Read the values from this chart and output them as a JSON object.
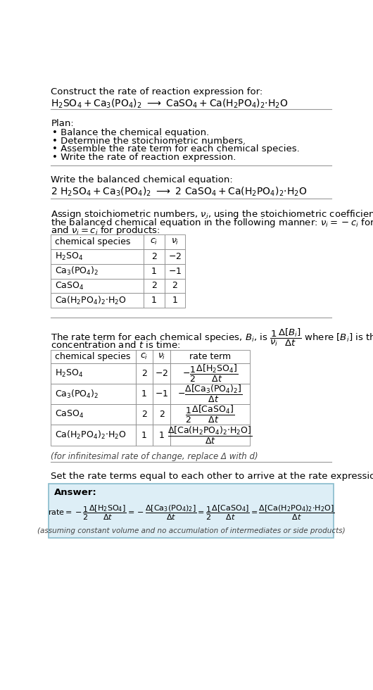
{
  "bg_color": "#ffffff",
  "text_color": "#000000",
  "line_color": "#999999",
  "answer_box_color": "#ddeef6",
  "answer_box_border": "#88bbcc",
  "title_line1": "Construct the rate of reaction expression for:",
  "plan_header": "Plan:",
  "plan_items": [
    "• Balance the chemical equation.",
    "• Determine the stoichiometric numbers.",
    "• Assemble the rate term for each chemical species.",
    "• Write the rate of reaction expression."
  ],
  "balanced_header": "Write the balanced chemical equation:",
  "infinitesimal_note": "(for infinitesimal rate of change, replace Δ with d)",
  "set_equal_header": "Set the rate terms equal to each other to arrive at the rate expression:",
  "answer_label": "Answer:",
  "footnote": "(assuming constant volume and no accumulation of intermediates or side products)"
}
